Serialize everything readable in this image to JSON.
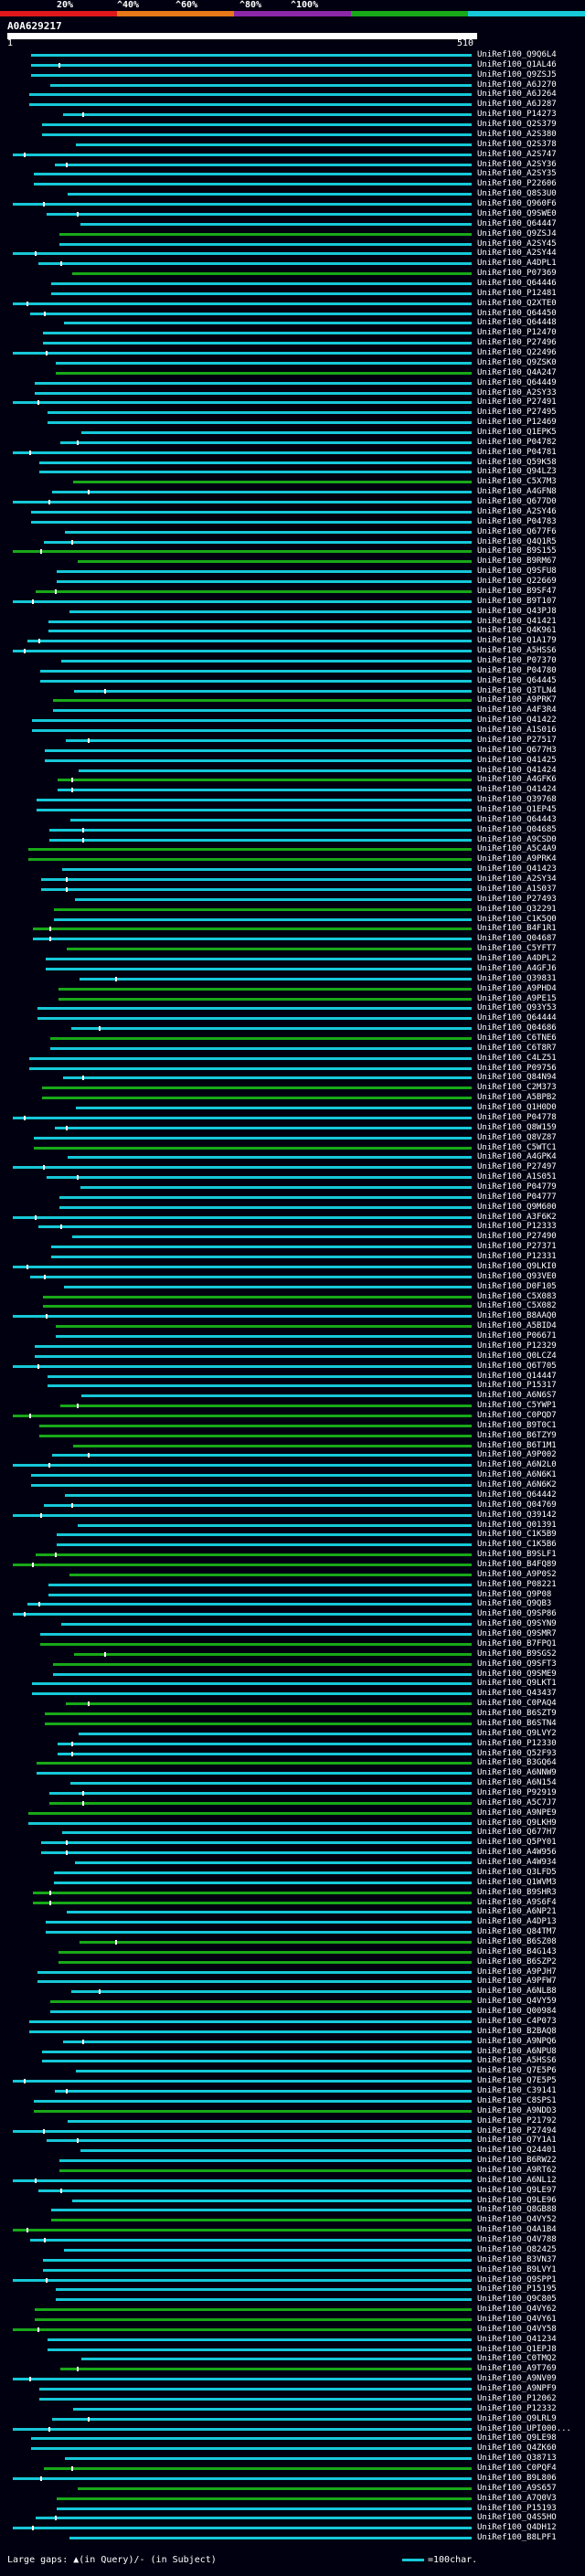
{
  "scale": {
    "labels": [
      "20%",
      "^40%",
      "^60%",
      "^80%",
      "^100%"
    ],
    "colors": [
      "#e0181c",
      "#e87818",
      "#8c28a8",
      "#18a818",
      "#16c8d8"
    ]
  },
  "query": {
    "id": "A0A629217",
    "start": "1",
    "end": "510"
  },
  "hits": [
    {
      "id": "UniRef100_Q9Q6L4",
      "color": "#16c8d8"
    },
    {
      "id": "UniRef100_Q1AL46",
      "color": "#16c8d8"
    },
    {
      "id": "UniRef100_Q9ZSJ5",
      "color": "#16c8d8"
    },
    {
      "id": "UniRef100_A6J270",
      "color": "#16c8d8"
    },
    {
      "id": "UniRef100_A6J264",
      "color": "#16c8d8"
    },
    {
      "id": "UniRef100_A6J287",
      "color": "#16c8d8"
    },
    {
      "id": "UniRef100_P14273",
      "color": "#16c8d8"
    },
    {
      "id": "UniRef100_Q2S379",
      "color": "#16c8d8"
    },
    {
      "id": "UniRef100_A2S380",
      "color": "#16c8d8"
    },
    {
      "id": "UniRef100_Q2S378",
      "color": "#16c8d8"
    },
    {
      "id": "UniRef100_A2S747",
      "color": "#16c8d8"
    },
    {
      "id": "UniRef100_A2SY36",
      "color": "#16c8d8"
    },
    {
      "id": "UniRef100_A2SY35",
      "color": "#16c8d8"
    },
    {
      "id": "UniRef100_P22606",
      "color": "#16c8d8"
    },
    {
      "id": "UniRef100_Q8S3U0",
      "color": "#16c8d8"
    },
    {
      "id": "UniRef100_Q960F6",
      "color": "#16c8d8"
    },
    {
      "id": "UniRef100_Q9SWE0",
      "color": "#16c8d8"
    },
    {
      "id": "UniRef100_Q64447",
      "color": "#16c8d8"
    },
    {
      "id": "UniRef100_Q9ZSJ4",
      "color": "#18a818"
    },
    {
      "id": "UniRef100_A2SY45",
      "color": "#16c8d8"
    },
    {
      "id": "UniRef100_A2SY44",
      "color": "#16c8d8"
    },
    {
      "id": "UniRef100_A4DPL1",
      "color": "#16c8d8"
    },
    {
      "id": "UniRef100_P07369",
      "color": "#18a818"
    },
    {
      "id": "UniRef100_Q64446",
      "color": "#16c8d8"
    },
    {
      "id": "UniRef100_P12481",
      "color": "#16c8d8"
    },
    {
      "id": "UniRef100_Q2XTE0",
      "color": "#16c8d8"
    },
    {
      "id": "UniRef100_Q64450",
      "color": "#16c8d8"
    },
    {
      "id": "UniRef100_Q64448",
      "color": "#16c8d8"
    },
    {
      "id": "UniRef100_P12470",
      "color": "#16c8d8"
    },
    {
      "id": "UniRef100_P27496",
      "color": "#16c8d8"
    },
    {
      "id": "UniRef100_Q22496",
      "color": "#16c8d8"
    },
    {
      "id": "UniRef100_Q9ZSK0",
      "color": "#16c8d8"
    },
    {
      "id": "UniRef100_Q4A247",
      "color": "#18a818"
    },
    {
      "id": "UniRef100_Q64449",
      "color": "#16c8d8"
    },
    {
      "id": "UniRef100_A2SY33",
      "color": "#16c8d8"
    },
    {
      "id": "UniRef100_P27491",
      "color": "#16c8d8"
    },
    {
      "id": "UniRef100_P27495",
      "color": "#16c8d8"
    },
    {
      "id": "UniRef100_P12469",
      "color": "#16c8d8"
    },
    {
      "id": "UniRef100_Q1EPK5",
      "color": "#16c8d8"
    },
    {
      "id": "UniRef100_P04782",
      "color": "#16c8d8"
    },
    {
      "id": "UniRef100_P04781",
      "color": "#16c8d8"
    },
    {
      "id": "UniRef100_Q59K58",
      "color": "#16c8d8"
    },
    {
      "id": "UniRef100_Q94LZ3",
      "color": "#16c8d8"
    },
    {
      "id": "UniRef100_C5X7M3",
      "color": "#18a818"
    },
    {
      "id": "UniRef100_A4GFN8",
      "color": "#16c8d8"
    },
    {
      "id": "UniRef100_Q677D0",
      "color": "#16c8d8"
    },
    {
      "id": "UniRef100_A2SY46",
      "color": "#16c8d8"
    },
    {
      "id": "UniRef100_P04783",
      "color": "#16c8d8"
    },
    {
      "id": "UniRef100_Q677F6",
      "color": "#16c8d8"
    },
    {
      "id": "UniRef100_Q4Q1R5",
      "color": "#16c8d8"
    },
    {
      "id": "UniRef100_B9S155",
      "color": "#18a818"
    },
    {
      "id": "UniRef100_B9RM67",
      "color": "#18a818"
    },
    {
      "id": "UniRef100_Q9SFU8",
      "color": "#16c8d8"
    },
    {
      "id": "UniRef100_Q22669",
      "color": "#16c8d8"
    },
    {
      "id": "UniRef100_B9SF47",
      "color": "#18a818"
    },
    {
      "id": "UniRef100_B9T107",
      "color": "#16c8d8"
    },
    {
      "id": "UniRef100_Q43PJ8",
      "color": "#16c8d8"
    },
    {
      "id": "UniRef100_Q41421",
      "color": "#16c8d8"
    },
    {
      "id": "UniRef100_Q4K961",
      "color": "#16c8d8"
    },
    {
      "id": "UniRef100_Q1A179",
      "color": "#16c8d8"
    },
    {
      "id": "UniRef100_A5HSS6",
      "color": "#16c8d8"
    },
    {
      "id": "UniRef100_P07370",
      "color": "#16c8d8"
    },
    {
      "id": "UniRef100_P04780",
      "color": "#16c8d8"
    },
    {
      "id": "UniRef100_Q64445",
      "color": "#16c8d8"
    },
    {
      "id": "UniRef100_Q3TLN4",
      "color": "#16c8d8"
    },
    {
      "id": "UniRef100_A9PRK7",
      "color": "#18a818"
    },
    {
      "id": "UniRef100_A4F3R4",
      "color": "#16c8d8"
    },
    {
      "id": "UniRef100_Q41422",
      "color": "#16c8d8"
    },
    {
      "id": "UniRef100_A1S016",
      "color": "#16c8d8"
    },
    {
      "id": "UniRef100_P27517",
      "color": "#16c8d8"
    },
    {
      "id": "UniRef100_Q677H3",
      "color": "#16c8d8"
    },
    {
      "id": "UniRef100_Q41425",
      "color": "#16c8d8"
    },
    {
      "id": "UniRef100_Q41424",
      "color": "#16c8d8"
    },
    {
      "id": "UniRef100_A4GFK6",
      "color": "#18a818"
    },
    {
      "id": "UniRef100_Q41424",
      "color": "#16c8d8"
    },
    {
      "id": "UniRef100_Q39768",
      "color": "#16c8d8"
    },
    {
      "id": "UniRef100_Q1EP45",
      "color": "#16c8d8"
    },
    {
      "id": "UniRef100_Q64443",
      "color": "#16c8d8"
    },
    {
      "id": "UniRef100_Q04685",
      "color": "#16c8d8"
    },
    {
      "id": "UniRef100_A9CSD0",
      "color": "#16c8d8"
    },
    {
      "id": "UniRef100_A5C4A9",
      "color": "#18a818"
    },
    {
      "id": "UniRef100_A9PRK4",
      "color": "#18a818"
    },
    {
      "id": "UniRef100_Q41423",
      "color": "#16c8d8"
    },
    {
      "id": "UniRef100_A2SY34",
      "color": "#16c8d8"
    },
    {
      "id": "UniRef100_A1S037",
      "color": "#16c8d8"
    },
    {
      "id": "UniRef100_P27493",
      "color": "#16c8d8"
    },
    {
      "id": "UniRef100_Q32291",
      "color": "#18a818"
    },
    {
      "id": "UniRef100_C1K5Q0",
      "color": "#16c8d8"
    },
    {
      "id": "UniRef100_B4F1R1",
      "color": "#18a818"
    },
    {
      "id": "UniRef100_Q04687",
      "color": "#16c8d8"
    },
    {
      "id": "UniRef100_C5YFT7",
      "color": "#18a818"
    },
    {
      "id": "UniRef100_A4DPL2",
      "color": "#16c8d8"
    },
    {
      "id": "UniRef100_A4GFJ6",
      "color": "#16c8d8"
    },
    {
      "id": "UniRef100_Q39831",
      "color": "#16c8d8"
    },
    {
      "id": "UniRef100_A9PHD4",
      "color": "#18a818"
    },
    {
      "id": "UniRef100_A9PE15",
      "color": "#18a818"
    },
    {
      "id": "UniRef100_Q93Y53",
      "color": "#16c8d8"
    },
    {
      "id": "UniRef100_Q64444",
      "color": "#16c8d8"
    },
    {
      "id": "UniRef100_Q04686",
      "color": "#16c8d8"
    },
    {
      "id": "UniRef100_C6TNE6",
      "color": "#18a818"
    },
    {
      "id": "UniRef100_C6T8R7",
      "color": "#16c8d8"
    },
    {
      "id": "UniRef100_C4LZ51",
      "color": "#16c8d8"
    },
    {
      "id": "UniRef100_P09756",
      "color": "#16c8d8"
    },
    {
      "id": "UniRef100_Q84N94",
      "color": "#16c8d8"
    },
    {
      "id": "UniRef100_C2M373",
      "color": "#18a818"
    },
    {
      "id": "UniRef100_A5BPB2",
      "color": "#18a818"
    },
    {
      "id": "UniRef100_Q1H0D0",
      "color": "#16c8d8"
    },
    {
      "id": "UniRef100_P04778",
      "color": "#16c8d8"
    },
    {
      "id": "UniRef100_Q8W159",
      "color": "#16c8d8"
    },
    {
      "id": "UniRef100_Q8VZ87",
      "color": "#16c8d8"
    },
    {
      "id": "UniRef100_C5WTC1",
      "color": "#18a818"
    },
    {
      "id": "UniRef100_A4GPK4",
      "color": "#16c8d8"
    },
    {
      "id": "UniRef100_P27497",
      "color": "#16c8d8"
    },
    {
      "id": "UniRef100_A1S051",
      "color": "#16c8d8"
    },
    {
      "id": "UniRef100_P04779",
      "color": "#16c8d8"
    },
    {
      "id": "UniRef100_P04777",
      "color": "#16c8d8"
    },
    {
      "id": "UniRef100_Q9M600",
      "color": "#16c8d8"
    },
    {
      "id": "UniRef100_A3F6K2",
      "color": "#16c8d8"
    },
    {
      "id": "UniRef100_P12333",
      "color": "#16c8d8"
    },
    {
      "id": "UniRef100_P27490",
      "color": "#16c8d8"
    },
    {
      "id": "UniRef100_P27371",
      "color": "#16c8d8"
    },
    {
      "id": "UniRef100_P12331",
      "color": "#16c8d8"
    },
    {
      "id": "UniRef100_Q9LKI0",
      "color": "#16c8d8"
    },
    {
      "id": "UniRef100_Q93VE0",
      "color": "#16c8d8"
    },
    {
      "id": "UniRef100_D0F105",
      "color": "#16c8d8"
    },
    {
      "id": "UniRef100_C5X083",
      "color": "#18a818"
    },
    {
      "id": "UniRef100_C5X082",
      "color": "#18a818"
    },
    {
      "id": "UniRef100_B8AAQ0",
      "color": "#16c8d8"
    },
    {
      "id": "UniRef100_A5BID4",
      "color": "#18a818"
    },
    {
      "id": "UniRef100_P06671",
      "color": "#16c8d8"
    },
    {
      "id": "UniRef100_P12329",
      "color": "#16c8d8"
    },
    {
      "id": "UniRef100_Q0LCZ4",
      "color": "#16c8d8"
    },
    {
      "id": "UniRef100_Q6T705",
      "color": "#16c8d8"
    },
    {
      "id": "UniRef100_Q14447",
      "color": "#16c8d8"
    },
    {
      "id": "UniRef100_P15317",
      "color": "#16c8d8"
    },
    {
      "id": "UniRef100_A6N6S7",
      "color": "#16c8d8"
    },
    {
      "id": "UniRef100_C5YWP1",
      "color": "#18a818"
    },
    {
      "id": "UniRef100_C0PQD7",
      "color": "#18a818"
    },
    {
      "id": "UniRef100_B9T0C1",
      "color": "#18a818"
    },
    {
      "id": "UniRef100_B6TZY9",
      "color": "#18a818"
    },
    {
      "id": "UniRef100_B6T1M1",
      "color": "#18a818"
    },
    {
      "id": "UniRef100_A9P002",
      "color": "#16c8d8"
    },
    {
      "id": "UniRef100_A6N2L0",
      "color": "#16c8d8"
    },
    {
      "id": "UniRef100_A6N6K1",
      "color": "#16c8d8"
    },
    {
      "id": "UniRef100_A6N6K2",
      "color": "#16c8d8"
    },
    {
      "id": "UniRef100_Q64442",
      "color": "#16c8d8"
    },
    {
      "id": "UniRef100_Q04769",
      "color": "#16c8d8"
    },
    {
      "id": "UniRef100_Q39142",
      "color": "#16c8d8"
    },
    {
      "id": "UniRef100_Q01391",
      "color": "#16c8d8"
    },
    {
      "id": "UniRef100_C1K5B9",
      "color": "#16c8d8"
    },
    {
      "id": "UniRef100_C1K5B6",
      "color": "#16c8d8"
    },
    {
      "id": "UniRef100_B9SLF1",
      "color": "#18a818"
    },
    {
      "id": "UniRef100_B4FQ89",
      "color": "#18a818"
    },
    {
      "id": "UniRef100_A9P0S2",
      "color": "#18a818"
    },
    {
      "id": "UniRef100_P08221",
      "color": "#16c8d8"
    },
    {
      "id": "UniRef100_Q9P08",
      "color": "#16c8d8"
    },
    {
      "id": "UniRef100_Q9QB3",
      "color": "#16c8d8"
    },
    {
      "id": "UniRef100_Q9SP86",
      "color": "#16c8d8"
    },
    {
      "id": "UniRef100_Q9SYN9",
      "color": "#16c8d8"
    },
    {
      "id": "UniRef100_Q9SMR7",
      "color": "#16c8d8"
    },
    {
      "id": "UniRef100_B7FPQ1",
      "color": "#18a818"
    },
    {
      "id": "UniRef100_B9SGS2",
      "color": "#18a818"
    },
    {
      "id": "UniRef100_Q9SFT3",
      "color": "#18a818"
    },
    {
      "id": "UniRef100_Q9SME9",
      "color": "#16c8d8"
    },
    {
      "id": "UniRef100_Q9LKT1",
      "color": "#16c8d8"
    },
    {
      "id": "UniRef100_Q43437",
      "color": "#16c8d8"
    },
    {
      "id": "UniRef100_C0PAQ4",
      "color": "#18a818"
    },
    {
      "id": "UniRef100_B6SZT9",
      "color": "#18a818"
    },
    {
      "id": "UniRef100_B6STN4",
      "color": "#18a818"
    },
    {
      "id": "UniRef100_Q9LVY2",
      "color": "#16c8d8"
    },
    {
      "id": "UniRef100_P12330",
      "color": "#16c8d8"
    },
    {
      "id": "UniRef100_Q52F93",
      "color": "#16c8d8"
    },
    {
      "id": "UniRef100_B3GQ64",
      "color": "#18a818"
    },
    {
      "id": "UniRef100_A6NNW9",
      "color": "#16c8d8"
    },
    {
      "id": "UniRef100_A6N154",
      "color": "#16c8d8"
    },
    {
      "id": "UniRef100_P92919",
      "color": "#16c8d8"
    },
    {
      "id": "UniRef100_A5C7J7",
      "color": "#18a818"
    },
    {
      "id": "UniRef100_A9NPE9",
      "color": "#18a818"
    },
    {
      "id": "UniRef100_Q9LKH9",
      "color": "#16c8d8"
    },
    {
      "id": "UniRef100_Q677H7",
      "color": "#16c8d8"
    },
    {
      "id": "UniRef100_Q5PY01",
      "color": "#16c8d8"
    },
    {
      "id": "UniRef100_A4W956",
      "color": "#16c8d8"
    },
    {
      "id": "UniRef100_A4W934",
      "color": "#16c8d8"
    },
    {
      "id": "UniRef100_Q3LFD5",
      "color": "#16c8d8"
    },
    {
      "id": "UniRef100_Q1WVM3",
      "color": "#16c8d8"
    },
    {
      "id": "UniRef100_B9SHR3",
      "color": "#18a818"
    },
    {
      "id": "UniRef100_A9S6F4",
      "color": "#18a818"
    },
    {
      "id": "UniRef100_A6NP21",
      "color": "#16c8d8"
    },
    {
      "id": "UniRef100_A4DP13",
      "color": "#16c8d8"
    },
    {
      "id": "UniRef100_Q84TM7",
      "color": "#16c8d8"
    },
    {
      "id": "UniRef100_B6SZ08",
      "color": "#18a818"
    },
    {
      "id": "UniRef100_B4G143",
      "color": "#18a818"
    },
    {
      "id": "UniRef100_B6SZP2",
      "color": "#18a818"
    },
    {
      "id": "UniRef100_A9PJH7",
      "color": "#16c8d8"
    },
    {
      "id": "UniRef100_A9PFW7",
      "color": "#16c8d8"
    },
    {
      "id": "UniRef100_A6NLB8",
      "color": "#16c8d8"
    },
    {
      "id": "UniRef100_Q4VY59",
      "color": "#18a818"
    },
    {
      "id": "UniRef100_Q00984",
      "color": "#16c8d8"
    },
    {
      "id": "UniRef100_C4P073",
      "color": "#16c8d8"
    },
    {
      "id": "UniRef100_B2BAQ8",
      "color": "#16c8d8"
    },
    {
      "id": "UniRef100_A9NPQ6",
      "color": "#16c8d8"
    },
    {
      "id": "UniRef100_A6NPU8",
      "color": "#16c8d8"
    },
    {
      "id": "UniRef100_A5HSS6",
      "color": "#16c8d8"
    },
    {
      "id": "UniRef100_Q7E5P6",
      "color": "#16c8d8"
    },
    {
      "id": "UniRef100_Q7E5P5",
      "color": "#16c8d8"
    },
    {
      "id": "UniRef100_C39141",
      "color": "#16c8d8"
    },
    {
      "id": "UniRef100_C8SPS1",
      "color": "#16c8d8"
    },
    {
      "id": "UniRef100_A9NDD3",
      "color": "#18a818"
    },
    {
      "id": "UniRef100_P21792",
      "color": "#16c8d8"
    },
    {
      "id": "UniRef100_P27494",
      "color": "#16c8d8"
    },
    {
      "id": "UniRef100_Q7Y1A1",
      "color": "#16c8d8"
    },
    {
      "id": "UniRef100_Q24401",
      "color": "#16c8d8"
    },
    {
      "id": "UniRef100_B6RW22",
      "color": "#16c8d8"
    },
    {
      "id": "UniRef100_A9RT62",
      "color": "#18a818"
    },
    {
      "id": "UniRef100_A6NL12",
      "color": "#16c8d8"
    },
    {
      "id": "UniRef100_Q9LE97",
      "color": "#16c8d8"
    },
    {
      "id": "UniRef100_Q9LE96",
      "color": "#16c8d8"
    },
    {
      "id": "UniRef100_Q8GB88",
      "color": "#16c8d8"
    },
    {
      "id": "UniRef100_Q4VY52",
      "color": "#18a818"
    },
    {
      "id": "UniRef100_Q4A1B4",
      "color": "#18a818"
    },
    {
      "id": "UniRef100_Q4V788",
      "color": "#16c8d8"
    },
    {
      "id": "UniRef100_Q82425",
      "color": "#16c8d8"
    },
    {
      "id": "UniRef100_B3VN37",
      "color": "#16c8d8"
    },
    {
      "id": "UniRef100_B9LVY1",
      "color": "#16c8d8"
    },
    {
      "id": "UniRef100_Q9SPP1",
      "color": "#16c8d8"
    },
    {
      "id": "UniRef100_P15195",
      "color": "#16c8d8"
    },
    {
      "id": "UniRef100_Q9C805",
      "color": "#16c8d8"
    },
    {
      "id": "UniRef100_Q4VY62",
      "color": "#18a818"
    },
    {
      "id": "UniRef100_Q4VY61",
      "color": "#18a818"
    },
    {
      "id": "UniRef100_Q4VY58",
      "color": "#18a818"
    },
    {
      "id": "UniRef100_Q41234",
      "color": "#16c8d8"
    },
    {
      "id": "UniRef100_Q1EPJ8",
      "color": "#16c8d8"
    },
    {
      "id": "UniRef100_C0TMQ2",
      "color": "#16c8d8"
    },
    {
      "id": "UniRef100_A9T769",
      "color": "#18a818"
    },
    {
      "id": "UniRef100_A9NV09",
      "color": "#16c8d8"
    },
    {
      "id": "UniRef100_A9NPF9",
      "color": "#16c8d8"
    },
    {
      "id": "UniRef100_P12062",
      "color": "#16c8d8"
    },
    {
      "id": "UniRef100_P12332",
      "color": "#16c8d8"
    },
    {
      "id": "UniRef100_Q9LRL9",
      "color": "#16c8d8"
    },
    {
      "id": "UniRef100_UPI000...",
      "color": "#16c8d8"
    },
    {
      "id": "UniRef100_Q9LE98",
      "color": "#16c8d8"
    },
    {
      "id": "UniRef100_Q4ZK60",
      "color": "#16c8d8"
    },
    {
      "id": "UniRef100_Q38713",
      "color": "#16c8d8"
    },
    {
      "id": "UniRef100_C0PQF4",
      "color": "#18a818"
    },
    {
      "id": "UniRef100_B9L806",
      "color": "#16c8d8"
    },
    {
      "id": "UniRef100_A9S657",
      "color": "#18a818"
    },
    {
      "id": "UniRef100_A7Q0V3",
      "color": "#18a818"
    },
    {
      "id": "UniRef100_P15193",
      "color": "#16c8d8"
    },
    {
      "id": "UniRef100_Q4S5HO",
      "color": "#16c8d8"
    },
    {
      "id": "UniRef100_Q4DH12",
      "color": "#16c8d8"
    },
    {
      "id": "UniRef100_B8LPF1",
      "color": "#16c8d8"
    }
  ],
  "footer": {
    "text": "Large gaps: ▲(in Query)/- (in Subject)",
    "legend": "=100char."
  }
}
